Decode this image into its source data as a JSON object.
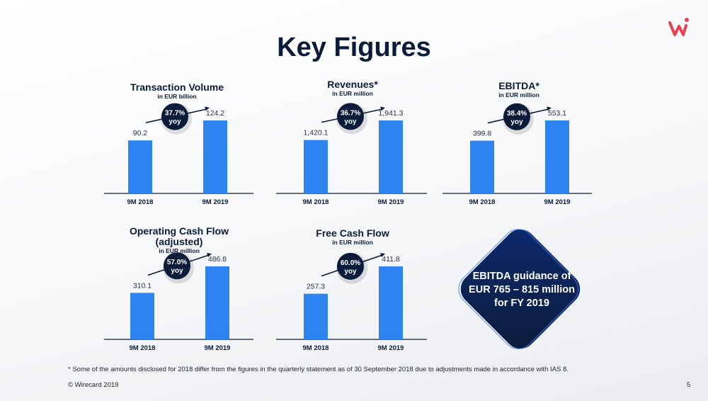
{
  "slide": {
    "title": "Key Figures",
    "footnote": "* Some of the amounts disclosed for 2018 differ from the figures in the quarterly statement as of 30 September 2018 due to adjustments made in accordance with IAS 8.",
    "copyright": "© Wirecard 2019",
    "page_number": "5",
    "guidance": {
      "line1": "EBITDA guidance of",
      "line2": "EUR 765 – 815 million",
      "line3": "for FY 2019"
    }
  },
  "colors": {
    "bar": "#2d83f0",
    "navy": "#0b1c3a",
    "logo": "#e8424f"
  },
  "chart_data": [
    {
      "type": "bar",
      "title_lines": [
        "Transaction Volume"
      ],
      "subtitle": "in EUR billion",
      "categories": [
        "9M 2018",
        "9M 2019"
      ],
      "values": [
        90.2,
        124.2
      ],
      "value_labels": [
        "90.2",
        "124.2"
      ],
      "growth": {
        "pct": "37.7%",
        "label": "yoy"
      }
    },
    {
      "type": "bar",
      "title_lines": [
        "Revenues*"
      ],
      "subtitle": "in EUR million",
      "categories": [
        "9M 2018",
        "9M 2019"
      ],
      "values": [
        1420.1,
        1941.3
      ],
      "value_labels": [
        "1,420.1",
        "1,941.3"
      ],
      "growth": {
        "pct": "36.7%",
        "label": "yoy"
      }
    },
    {
      "type": "bar",
      "title_lines": [
        "EBITDA*"
      ],
      "subtitle": "in EUR million",
      "categories": [
        "9M 2018",
        "9M 2019"
      ],
      "values": [
        399.8,
        553.1
      ],
      "value_labels": [
        "399.8",
        "553.1"
      ],
      "growth": {
        "pct": "38.4%",
        "label": "yoy"
      }
    },
    {
      "type": "bar",
      "title_lines": [
        "Operating Cash Flow",
        "(adjusted)"
      ],
      "subtitle": "in EUR million",
      "categories": [
        "9M 2018",
        "9M 2019"
      ],
      "values": [
        310.1,
        486.8
      ],
      "value_labels": [
        "310.1",
        "486.8"
      ],
      "growth": {
        "pct": "57.0%",
        "label": "yoy"
      }
    },
    {
      "type": "bar",
      "title_lines": [
        "Free Cash Flow"
      ],
      "subtitle": "in EUR million",
      "categories": [
        "9M 2018",
        "9M 2019"
      ],
      "values": [
        257.3,
        411.8
      ],
      "value_labels": [
        "257.3",
        "411.8"
      ],
      "growth": {
        "pct": "60.0%",
        "label": "yoy"
      }
    }
  ]
}
